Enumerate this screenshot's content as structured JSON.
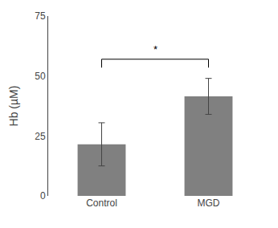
{
  "chart_data": {
    "type": "bar",
    "categories": [
      "Control",
      "MGD"
    ],
    "values": [
      21.5,
      41.5
    ],
    "errors": [
      9.0,
      7.5
    ],
    "color": "#808080",
    "ylabel": "Hb (µM)",
    "ylim": [
      0,
      75
    ],
    "yticks": [
      0,
      25,
      50,
      75
    ],
    "grid": false,
    "significance": {
      "label": "*",
      "between": [
        "Control",
        "MGD"
      ],
      "bracket_y": 57,
      "tick_drop": 3.5,
      "label_y": 58
    }
  }
}
